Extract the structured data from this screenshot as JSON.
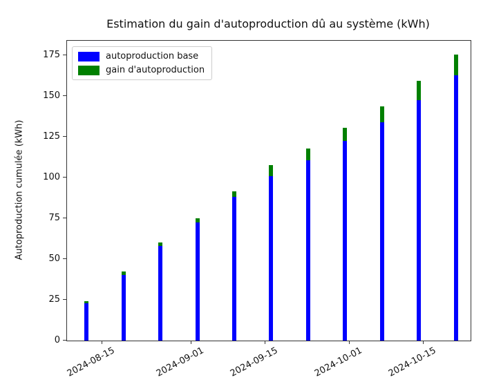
{
  "chart_data": {
    "type": "bar",
    "stacked": true,
    "title": "Estimation du gain d'autoproduction dû au système (kWh)",
    "xlabel": "",
    "ylabel": "Autoproduction cumulée (kWh)",
    "grid": false,
    "legend_position": "upper left",
    "background_color": "#ffffff",
    "spine_color": "#333333",
    "legend_border_color": "#cccccc",
    "ylim": [
      0,
      184
    ],
    "yticks": [
      0,
      25,
      50,
      75,
      100,
      125,
      150,
      175
    ],
    "x_tick_labels": [
      "2024-08-15",
      "2024-09-01",
      "2024-09-15",
      "2024-10-01",
      "2024-10-15"
    ],
    "x_tick_day_offsets": [
      3,
      20,
      34,
      50,
      64
    ],
    "xlim_day_offsets": [
      -3.7,
      72.8
    ],
    "bar_day_offsets": [
      0,
      7,
      14,
      21,
      28,
      35,
      42,
      49,
      56,
      63,
      70
    ],
    "x_dates_estimated": [
      "2024-08-12",
      "2024-08-19",
      "2024-08-26",
      "2024-09-02",
      "2024-09-09",
      "2024-09-16",
      "2024-09-23",
      "2024-09-30",
      "2024-10-07",
      "2024-10-14",
      "2024-10-21"
    ],
    "series": [
      {
        "name": "autoproduction base",
        "color": "#0000ff",
        "values": [
          22.7,
          40.3,
          57.9,
          72.7,
          88.2,
          101.0,
          110.7,
          122.4,
          134.0,
          147.6,
          162.9
        ]
      },
      {
        "name": "gain d'autoproduction",
        "color": "#008000",
        "values": [
          1.4,
          2.1,
          2.4,
          2.4,
          3.5,
          6.7,
          7.1,
          8.3,
          9.6,
          12.0,
          12.7
        ]
      }
    ],
    "totals_estimated": [
      24.1,
      42.4,
      60.3,
      75.1,
      91.7,
      107.7,
      117.8,
      130.7,
      143.6,
      159.6,
      175.6
    ]
  }
}
